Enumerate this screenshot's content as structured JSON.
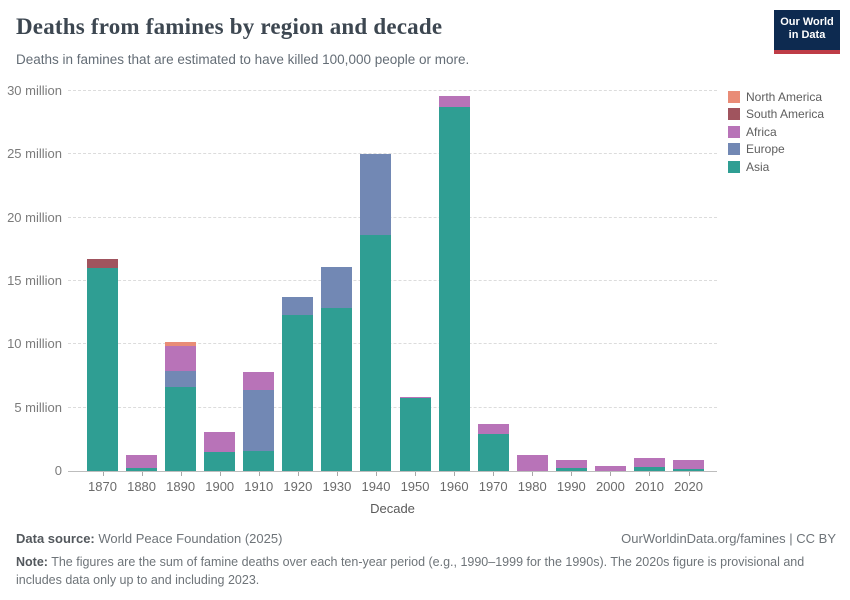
{
  "header": {
    "title": "Deaths from famines by region and decade",
    "subtitle": "Deaths in famines that are estimated to have killed 100,000 people or more.",
    "logo": {
      "line1": "Our World",
      "line2": "in Data",
      "bg_color": "#0d2a50",
      "stripe_color": "#be3c46"
    }
  },
  "legend": {
    "position": "right",
    "items": [
      {
        "label": "North America",
        "color": "#e98c77"
      },
      {
        "label": "South America",
        "color": "#a0545e"
      },
      {
        "label": "Africa",
        "color": "#b873b8"
      },
      {
        "label": "Europe",
        "color": "#7288b4"
      },
      {
        "label": "Asia",
        "color": "#2f9e93"
      }
    ]
  },
  "chart_data": {
    "type": "bar",
    "stacked": true,
    "title": "Deaths from famines by region and decade",
    "xlabel": "Decade",
    "ylabel": "",
    "ylim": [
      0,
      30
    ],
    "ytick_step": 5,
    "ytick_unit": "million",
    "grid": "horizontal-dashed",
    "legend_position": "right",
    "categories": [
      "1870",
      "1880",
      "1890",
      "1900",
      "1910",
      "1920",
      "1930",
      "1940",
      "1950",
      "1960",
      "1970",
      "1980",
      "1990",
      "2000",
      "2010",
      "2020"
    ],
    "value_unit": "millions of deaths",
    "series": [
      {
        "name": "Asia",
        "color": "#2f9e93",
        "values": [
          16.0,
          0.2,
          6.6,
          1.5,
          1.6,
          12.3,
          12.9,
          18.6,
          5.75,
          28.7,
          2.9,
          0,
          0.25,
          0,
          0.3,
          0.15
        ]
      },
      {
        "name": "Europe",
        "color": "#7288b4",
        "values": [
          0,
          0,
          1.3,
          0,
          4.8,
          1.4,
          3.2,
          6.4,
          0,
          0,
          0,
          0,
          0,
          0,
          0,
          0
        ]
      },
      {
        "name": "Africa",
        "color": "#b873b8",
        "values": [
          0,
          1.1,
          2.0,
          1.6,
          1.4,
          0,
          0,
          0,
          0.1,
          0.9,
          0.8,
          1.3,
          0.65,
          0.4,
          0.7,
          0.75
        ]
      },
      {
        "name": "South America",
        "color": "#a0545e",
        "values": [
          0.7,
          0,
          0,
          0,
          0,
          0,
          0,
          0,
          0,
          0,
          0,
          0,
          0,
          0,
          0,
          0
        ]
      },
      {
        "name": "North America",
        "color": "#e98c77",
        "values": [
          0,
          0,
          0.3,
          0,
          0,
          0,
          0,
          0,
          0,
          0,
          0,
          0,
          0,
          0,
          0,
          0
        ]
      }
    ],
    "totals": [
      16.7,
      1.3,
      10.2,
      3.1,
      7.8,
      13.7,
      16.1,
      25.0,
      5.85,
      29.6,
      3.7,
      1.3,
      0.9,
      0.4,
      1.0,
      0.9
    ]
  },
  "footer": {
    "data_source_label": "Data source:",
    "data_source_value": "World Peace Foundation (2025)",
    "link": "OurWorldinData.org/famines | CC BY",
    "note_label": "Note:",
    "note_text": "The figures are the sum of famine deaths over each ten-year period (e.g., 1990–1999 for the 1990s). The 2020s figure is provisional and includes data only up to and including 2023."
  }
}
